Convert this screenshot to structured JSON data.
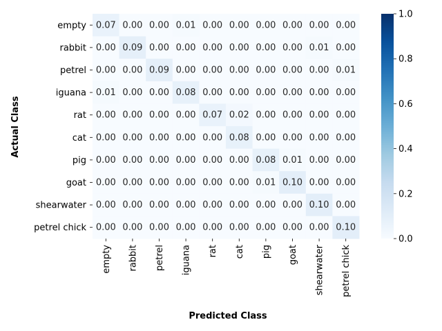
{
  "chart_data": {
    "type": "heatmap",
    "xlabel": "Predicted Class",
    "ylabel": "Actual Class",
    "x_categories": [
      "empty",
      "rabbit",
      "petrel",
      "iguana",
      "rat",
      "cat",
      "pig",
      "goat",
      "shearwater",
      "petrel chick"
    ],
    "y_categories": [
      "empty",
      "rabbit",
      "petrel",
      "iguana",
      "rat",
      "cat",
      "pig",
      "goat",
      "shearwater",
      "petrel chick"
    ],
    "values": [
      [
        0.07,
        0.0,
        0.0,
        0.01,
        0.0,
        0.0,
        0.0,
        0.0,
        0.0,
        0.0
      ],
      [
        0.0,
        0.09,
        0.0,
        0.0,
        0.0,
        0.0,
        0.0,
        0.0,
        0.01,
        0.0
      ],
      [
        0.0,
        0.0,
        0.09,
        0.0,
        0.0,
        0.0,
        0.0,
        0.0,
        0.0,
        0.01
      ],
      [
        0.01,
        0.0,
        0.0,
        0.08,
        0.0,
        0.0,
        0.0,
        0.0,
        0.0,
        0.0
      ],
      [
        0.0,
        0.0,
        0.0,
        0.0,
        0.07,
        0.02,
        0.0,
        0.0,
        0.0,
        0.0
      ],
      [
        0.0,
        0.0,
        0.0,
        0.0,
        0.0,
        0.08,
        0.0,
        0.0,
        0.0,
        0.0
      ],
      [
        0.0,
        0.0,
        0.0,
        0.0,
        0.0,
        0.0,
        0.08,
        0.01,
        0.0,
        0.0
      ],
      [
        0.0,
        0.0,
        0.0,
        0.0,
        0.0,
        0.0,
        0.01,
        0.1,
        0.0,
        0.0
      ],
      [
        0.0,
        0.0,
        0.0,
        0.0,
        0.0,
        0.0,
        0.0,
        0.0,
        0.1,
        0.0
      ],
      [
        0.0,
        0.0,
        0.0,
        0.0,
        0.0,
        0.0,
        0.0,
        0.0,
        0.0,
        0.1
      ]
    ],
    "colorbar": {
      "range": [
        0.0,
        1.0
      ],
      "ticks": [
        "0.0",
        "0.2",
        "0.4",
        "0.6",
        "0.8",
        "1.0"
      ],
      "colormap": "Blues",
      "low_color": "#f7fbff",
      "high_color": "#08306b"
    },
    "grid": false
  }
}
